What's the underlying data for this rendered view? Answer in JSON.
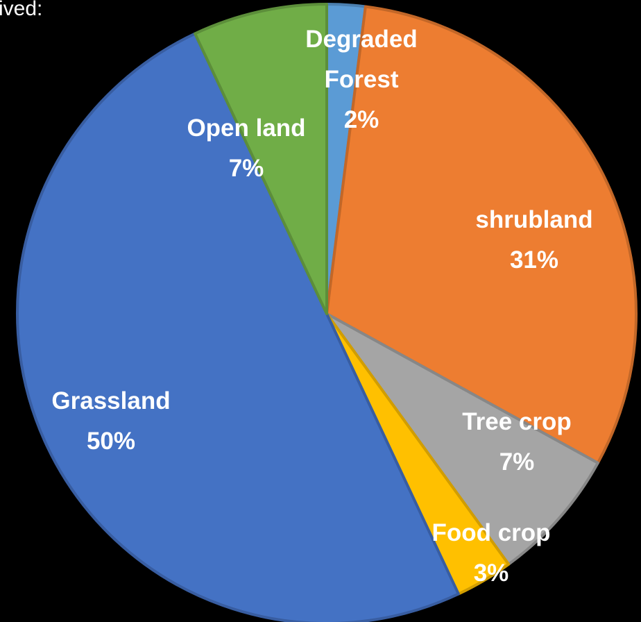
{
  "header_fragment": "ived:",
  "chart_data": {
    "type": "pie",
    "categories": [
      "Degraded Forest",
      "shrubland",
      "Tree crop",
      "Food crop",
      "Grassland",
      "Open land"
    ],
    "values": [
      2,
      31,
      7,
      3,
      50,
      7
    ],
    "value_labels": [
      "2%",
      "31%",
      "7%",
      "3%",
      "50%",
      "7%"
    ],
    "colors": [
      "#5b9bd5",
      "#ed7d31",
      "#a5a5a5",
      "#ffc000",
      "#4472c4",
      "#70ad47"
    ]
  }
}
